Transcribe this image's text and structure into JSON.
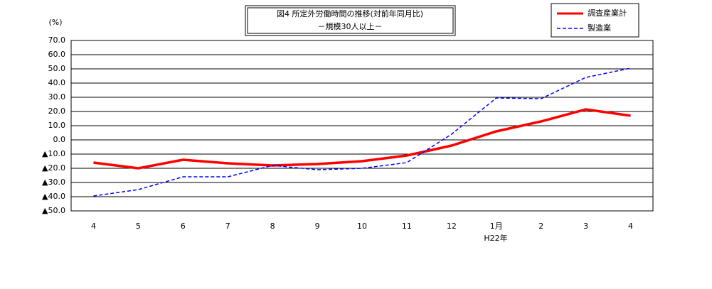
{
  "chart_data": {
    "type": "line",
    "title": "図4 所定外労働時間の推移(対前年同月比)",
    "subtitle": "－規模30人以上－",
    "y_axis_label": "(%)",
    "annotation": "H22年",
    "categories": [
      "4",
      "5",
      "6",
      "7",
      "8",
      "9",
      "10",
      "11",
      "12",
      "1月",
      "2",
      "3",
      "4"
    ],
    "series": [
      {
        "name": "調査産業計",
        "color": "#ff0000",
        "values": [
          -16,
          -20,
          -14,
          -16.5,
          -18,
          -17,
          -15,
          -11,
          -4,
          6,
          13,
          21.5,
          17
        ]
      },
      {
        "name": "製造業",
        "color": "#0000ff",
        "values": [
          -39.5,
          -35,
          -26,
          -26,
          -18,
          -21,
          -20,
          -16,
          4,
          29.5,
          29,
          44,
          50.5
        ]
      }
    ],
    "ylim": [
      -50,
      70
    ],
    "yticks": [
      {
        "value": 70,
        "label": "70.0"
      },
      {
        "value": 60,
        "label": "60.0"
      },
      {
        "value": 50,
        "label": "50.0"
      },
      {
        "value": 40,
        "label": "40.0"
      },
      {
        "value": 30,
        "label": "30.0"
      },
      {
        "value": 20,
        "label": "20.0"
      },
      {
        "value": 10,
        "label": "10.0"
      },
      {
        "value": 0,
        "label": "0.0"
      },
      {
        "value": -10,
        "label": "▲10.0"
      },
      {
        "value": -20,
        "label": "▲20.0"
      },
      {
        "value": -30,
        "label": "▲30.0"
      },
      {
        "value": -40,
        "label": "▲40.0"
      },
      {
        "value": -50,
        "label": "▲50.0"
      }
    ],
    "grid": true
  }
}
